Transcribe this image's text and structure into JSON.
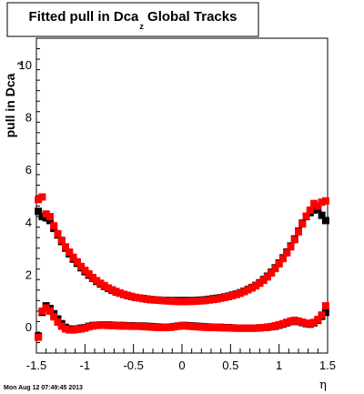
{
  "chart_data": {
    "type": "scatter",
    "title_main": "Fitted pull in Dca",
    "title_sub": "z",
    "title_rest": " Global Tracks",
    "ylabel_main": "pull in Dca",
    "ylabel_sub": "z",
    "xlabel": "η",
    "timestamp": "Mon Aug 12 07:49:45 2013",
    "xlim": [
      -1.5,
      1.5
    ],
    "ylim": [
      -1.0,
      11.0
    ],
    "x_ticks": [
      -1.5,
      -1.0,
      -0.5,
      0,
      0.5,
      1.0,
      1.5
    ],
    "x_tick_labels": [
      "-1.5",
      "-1",
      "-0.5",
      "0",
      "0.5",
      "1",
      "1.5"
    ],
    "y_ticks": [
      0,
      2,
      4,
      6,
      8,
      10
    ],
    "y_tick_labels": [
      "0",
      "2",
      "4",
      "6",
      "8",
      "10"
    ],
    "marker_colors": {
      "black": "#000000",
      "red": "#ff0000"
    },
    "series": [
      {
        "color": "black",
        "marker": "square",
        "x": [
          -1.48,
          -1.44,
          -1.4,
          -1.36,
          -1.32,
          -1.28,
          -1.24,
          -1.2,
          -1.16,
          -1.12,
          -1.08,
          -1.04,
          -1.0,
          -0.96,
          -0.92,
          -0.88,
          -0.84,
          -0.8,
          -0.76,
          -0.72,
          -0.68,
          -0.64,
          -0.6,
          -0.56,
          -0.52,
          -0.48,
          -0.44,
          -0.4,
          -0.36,
          -0.32,
          -0.28,
          -0.24,
          -0.2,
          -0.16,
          -0.12,
          -0.08,
          -0.04,
          0.0,
          0.04,
          0.08,
          0.12,
          0.16,
          0.2,
          0.24,
          0.28,
          0.32,
          0.36,
          0.4,
          0.44,
          0.48,
          0.52,
          0.56,
          0.6,
          0.64,
          0.68,
          0.72,
          0.76,
          0.8,
          0.84,
          0.88,
          0.92,
          0.96,
          1.0,
          1.04,
          1.08,
          1.12,
          1.16,
          1.2,
          1.24,
          1.28,
          1.32,
          1.36,
          1.4,
          1.44,
          1.48
        ],
        "y": [
          4.4,
          4.2,
          4.15,
          4.05,
          3.75,
          3.5,
          3.25,
          3.0,
          2.78,
          2.58,
          2.42,
          2.25,
          2.1,
          1.97,
          1.85,
          1.73,
          1.63,
          1.54,
          1.46,
          1.39,
          1.33,
          1.28,
          1.23,
          1.19,
          1.15,
          1.12,
          1.1,
          1.08,
          1.06,
          1.04,
          1.03,
          1.02,
          1.01,
          1.01,
          1.0,
          1.0,
          1.0,
          1.0,
          1.0,
          1.0,
          1.0,
          1.01,
          1.02,
          1.03,
          1.05,
          1.07,
          1.09,
          1.11,
          1.14,
          1.17,
          1.21,
          1.25,
          1.3,
          1.36,
          1.43,
          1.5,
          1.58,
          1.68,
          1.8,
          1.93,
          2.08,
          2.25,
          2.43,
          2.63,
          2.85,
          3.08,
          3.35,
          3.65,
          3.95,
          4.2,
          4.35,
          4.45,
          4.5,
          4.25,
          4.05
        ]
      },
      {
        "color": "red",
        "marker": "square",
        "x": [
          -1.48,
          -1.44,
          -1.4,
          -1.36,
          -1.32,
          -1.28,
          -1.24,
          -1.2,
          -1.16,
          -1.12,
          -1.08,
          -1.04,
          -1.0,
          -0.96,
          -0.92,
          -0.88,
          -0.84,
          -0.8,
          -0.76,
          -0.72,
          -0.68,
          -0.64,
          -0.6,
          -0.56,
          -0.52,
          -0.48,
          -0.44,
          -0.4,
          -0.36,
          -0.32,
          -0.28,
          -0.24,
          -0.2,
          -0.16,
          -0.12,
          -0.08,
          -0.04,
          0.0,
          0.04,
          0.08,
          0.12,
          0.16,
          0.2,
          0.24,
          0.28,
          0.32,
          0.36,
          0.4,
          0.44,
          0.48,
          0.52,
          0.56,
          0.6,
          0.64,
          0.68,
          0.72,
          0.76,
          0.8,
          0.84,
          0.88,
          0.92,
          0.96,
          1.0,
          1.04,
          1.08,
          1.12,
          1.16,
          1.2,
          1.24,
          1.28,
          1.32,
          1.36,
          1.4,
          1.44,
          1.48
        ],
        "y": [
          4.85,
          4.95,
          4.3,
          4.2,
          3.85,
          3.55,
          3.3,
          3.05,
          2.85,
          2.65,
          2.48,
          2.3,
          2.15,
          2.02,
          1.88,
          1.76,
          1.66,
          1.57,
          1.48,
          1.41,
          1.35,
          1.29,
          1.24,
          1.2,
          1.16,
          1.12,
          1.1,
          1.07,
          1.05,
          1.03,
          1.02,
          1.01,
          1.0,
          0.99,
          0.98,
          0.97,
          0.96,
          0.96,
          0.96,
          0.97,
          0.97,
          0.98,
          0.99,
          1.0,
          1.02,
          1.04,
          1.06,
          1.09,
          1.12,
          1.15,
          1.19,
          1.23,
          1.28,
          1.34,
          1.41,
          1.48,
          1.56,
          1.66,
          1.77,
          1.9,
          2.05,
          2.22,
          2.4,
          2.6,
          2.82,
          3.05,
          3.32,
          3.62,
          3.92,
          4.22,
          4.45,
          4.7,
          4.6,
          4.75,
          4.8
        ]
      },
      {
        "color": "black",
        "marker": "square",
        "x": [
          -1.48,
          -1.44,
          -1.4,
          -1.36,
          -1.32,
          -1.28,
          -1.24,
          -1.2,
          -1.16,
          -1.12,
          -1.08,
          -1.04,
          -1.0,
          -0.96,
          -0.92,
          -0.88,
          -0.84,
          -0.8,
          -0.76,
          -0.72,
          -0.68,
          -0.64,
          -0.6,
          -0.56,
          -0.52,
          -0.48,
          -0.44,
          -0.4,
          -0.36,
          -0.32,
          -0.28,
          -0.24,
          -0.2,
          -0.16,
          -0.12,
          -0.08,
          -0.04,
          0.0,
          0.04,
          0.08,
          0.12,
          0.16,
          0.2,
          0.24,
          0.28,
          0.32,
          0.36,
          0.4,
          0.44,
          0.48,
          0.52,
          0.56,
          0.6,
          0.64,
          0.68,
          0.72,
          0.76,
          0.8,
          0.84,
          0.88,
          0.92,
          0.96,
          1.0,
          1.04,
          1.08,
          1.12,
          1.16,
          1.2,
          1.24,
          1.28,
          1.32,
          1.36,
          1.4,
          1.44,
          1.48
        ],
        "y": [
          -0.35,
          0.55,
          0.8,
          0.7,
          0.5,
          0.3,
          0.12,
          -0.02,
          -0.08,
          -0.1,
          -0.08,
          -0.05,
          -0.03,
          0.02,
          0.05,
          0.06,
          0.07,
          0.07,
          0.07,
          0.06,
          0.05,
          0.05,
          0.05,
          0.04,
          0.04,
          0.03,
          0.03,
          0.03,
          0.02,
          0.01,
          0.0,
          -0.01,
          -0.02,
          -0.02,
          -0.01,
          0.01,
          0.03,
          0.05,
          0.05,
          0.04,
          0.03,
          0.02,
          0.01,
          0.0,
          -0.01,
          -0.02,
          -0.02,
          -0.02,
          -0.03,
          -0.03,
          -0.04,
          -0.05,
          -0.05,
          -0.05,
          -0.05,
          -0.05,
          -0.05,
          -0.04,
          -0.03,
          -0.02,
          0.0,
          0.02,
          0.06,
          0.1,
          0.15,
          0.2,
          0.22,
          0.2,
          0.16,
          0.12,
          0.1,
          0.15,
          0.25,
          0.4,
          0.55
        ]
      },
      {
        "color": "red",
        "marker": "square",
        "x": [
          -1.48,
          -1.44,
          -1.4,
          -1.36,
          -1.32,
          -1.28,
          -1.24,
          -1.2,
          -1.16,
          -1.12,
          -1.08,
          -1.04,
          -1.0,
          -0.96,
          -0.92,
          -0.88,
          -0.84,
          -0.8,
          -0.76,
          -0.72,
          -0.68,
          -0.64,
          -0.6,
          -0.56,
          -0.52,
          -0.48,
          -0.44,
          -0.4,
          -0.36,
          -0.32,
          -0.28,
          -0.24,
          -0.2,
          -0.16,
          -0.12,
          -0.08,
          -0.04,
          0.0,
          0.04,
          0.08,
          0.12,
          0.16,
          0.2,
          0.24,
          0.28,
          0.32,
          0.36,
          0.4,
          0.44,
          0.48,
          0.52,
          0.56,
          0.6,
          0.64,
          0.68,
          0.72,
          0.76,
          0.8,
          0.84,
          0.88,
          0.92,
          0.96,
          1.0,
          1.04,
          1.08,
          1.12,
          1.16,
          1.2,
          1.24,
          1.28,
          1.32,
          1.36,
          1.4,
          1.44,
          1.48
        ],
        "y": [
          -0.4,
          0.6,
          0.72,
          0.6,
          0.38,
          0.18,
          0.02,
          -0.08,
          -0.12,
          -0.12,
          -0.1,
          -0.08,
          -0.05,
          0.0,
          0.03,
          0.05,
          0.06,
          0.06,
          0.05,
          0.04,
          0.04,
          0.03,
          0.03,
          0.03,
          0.02,
          0.02,
          0.02,
          0.01,
          0.0,
          -0.01,
          -0.02,
          -0.03,
          -0.03,
          -0.03,
          -0.02,
          0.0,
          0.02,
          0.04,
          0.03,
          0.02,
          0.01,
          0.0,
          -0.01,
          -0.02,
          -0.03,
          -0.03,
          -0.03,
          -0.04,
          -0.04,
          -0.04,
          -0.05,
          -0.05,
          -0.05,
          -0.05,
          -0.05,
          -0.05,
          -0.05,
          -0.04,
          -0.03,
          -0.01,
          0.01,
          0.04,
          0.08,
          0.12,
          0.17,
          0.22,
          0.25,
          0.22,
          0.18,
          0.14,
          0.12,
          0.17,
          0.28,
          0.45,
          0.8
        ]
      }
    ]
  }
}
